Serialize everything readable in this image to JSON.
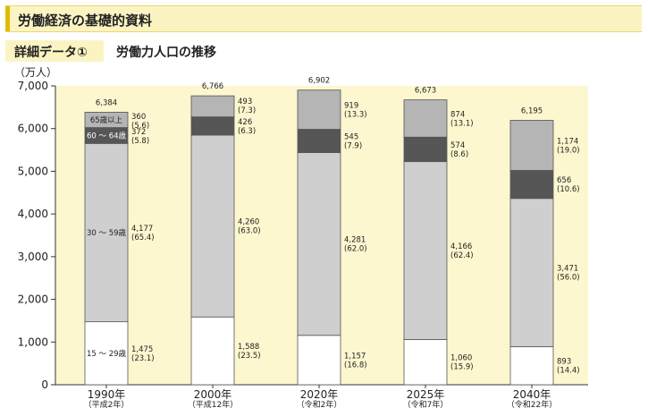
{
  "header": {
    "title": "労働経済の基礎的資料"
  },
  "detail_tag": "詳細データ①",
  "subtitle": "労働力人口の推移",
  "chart_data": {
    "type": "bar",
    "stacked": true,
    "ylabel": "（万人）",
    "ylim": [
      0,
      7000
    ],
    "yticks": [
      "0",
      "1,000",
      "2,000",
      "3,000",
      "4,000",
      "5,000",
      "6,000",
      "7,000"
    ],
    "grid": false,
    "categories": [
      {
        "label": "1990年",
        "sub": "（平成2年）"
      },
      {
        "label": "2000年",
        "sub": "（平成12年）"
      },
      {
        "label": "2020年",
        "sub": "（令和2年）"
      },
      {
        "label": "2025年",
        "sub": "（令和7年）"
      },
      {
        "label": "2040年",
        "sub": "（令和22年）"
      }
    ],
    "totals": [
      6384,
      6766,
      6902,
      6673,
      6195
    ],
    "total_labels": [
      "6,384",
      "6,766",
      "6,902",
      "6,673",
      "6,195"
    ],
    "series": [
      {
        "name": "15 ～ 29歳",
        "color": "#ffffff",
        "values": [
          1475,
          1588,
          1157,
          1060,
          893
        ],
        "value_labels": [
          "1,475",
          "1,588",
          "1,157",
          "1,060",
          "893"
        ],
        "pct_labels": [
          "(23.1)",
          "(23.5)",
          "(16.8)",
          "(15.9)",
          "(14.4)"
        ]
      },
      {
        "name": "30 ～ 59歳",
        "color": "#cfcfcf",
        "values": [
          4177,
          4260,
          4281,
          4166,
          3471
        ],
        "value_labels": [
          "4,177",
          "4,260",
          "4,281",
          "4,166",
          "3,471"
        ],
        "pct_labels": [
          "(65.4)",
          "(63.0)",
          "(62.0)",
          "(62.4)",
          "(56.0)"
        ]
      },
      {
        "name": "60 ～ 64歳",
        "color": "#565656",
        "values": [
          372,
          426,
          545,
          574,
          656
        ],
        "value_labels": [
          "372",
          "426",
          "545",
          "574",
          "656"
        ],
        "pct_labels": [
          "(5.8)",
          "(6.3)",
          "(7.9)",
          "(8.6)",
          "(10.6)"
        ]
      },
      {
        "name": "65歳以上",
        "color": "#b5b5b5",
        "values": [
          360,
          493,
          919,
          874,
          1174
        ],
        "value_labels": [
          "360",
          "493",
          "919",
          "874",
          "1,174"
        ],
        "pct_labels": [
          "(5.6)",
          "(7.3)",
          "(13.3)",
          "(13.1)",
          "(19.0)"
        ]
      }
    ]
  }
}
